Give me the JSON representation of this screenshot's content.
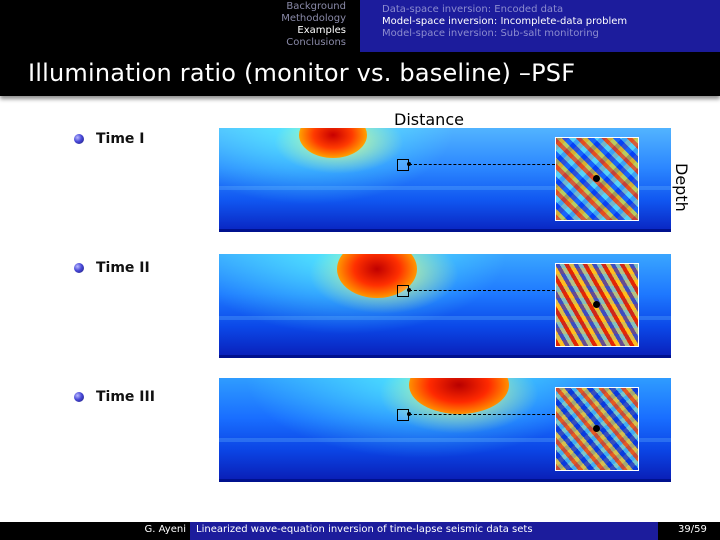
{
  "nav": {
    "sections": [
      "Background",
      "Methodology",
      "Examples",
      "Conclusions"
    ],
    "active_section": 2,
    "subsections": [
      "Data-space inversion: Encoded data",
      "Model-space inversion: Incomplete-data problem",
      "Model-space inversion: Sub-salt monitoring"
    ],
    "active_subsection": 1
  },
  "frame": {
    "title": "Illumination ratio (monitor vs. baseline) –PSF"
  },
  "figure": {
    "distance_label": "Distance",
    "depth_label": "Depth",
    "panels": [
      {
        "label": "Time I"
      },
      {
        "label": "Time II"
      },
      {
        "label": "Time III"
      }
    ]
  },
  "footer": {
    "author": "G. Ayeni",
    "title": "Linearized wave-equation inversion of time-lapse seismic data sets",
    "page": "39/59"
  }
}
